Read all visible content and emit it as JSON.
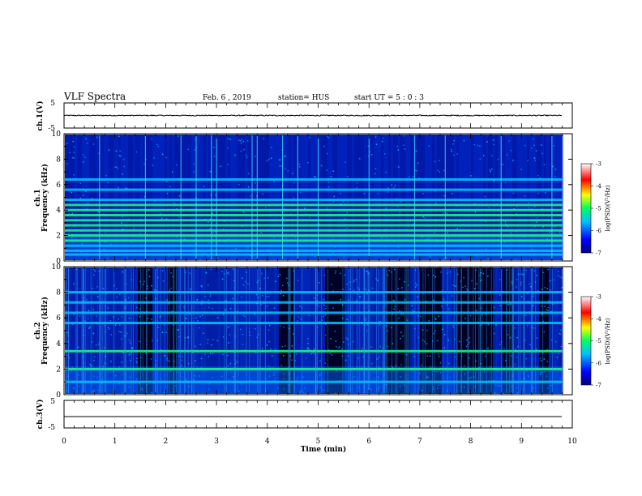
{
  "header": {
    "title": "VLF Spectra",
    "date": "Feb. 6 , 2019",
    "station": "station= HUS",
    "start": "start  UT  =   5 : 0  : 3"
  },
  "chart_data": [
    {
      "type": "line",
      "panel": "ch1-waveform",
      "ylabel": "ch.1(V)",
      "ylim": [
        -5,
        5
      ],
      "yticks": [
        "5",
        "-5"
      ],
      "xlim": [
        0,
        10
      ],
      "description_values": {
        "level": 0,
        "amplitude": 0.2
      }
    },
    {
      "type": "heatmap",
      "panel": "ch1-spectrogram",
      "ylabel": "ch.1\nFrequency (kHz)",
      "ylabel_lines": [
        "ch.1",
        "Frequency  (kHz)"
      ],
      "ylim": [
        0,
        10
      ],
      "yticks": [
        "0",
        "2",
        "4",
        "6",
        "8",
        "10"
      ],
      "xlim": [
        0,
        9.8
      ],
      "colorbar": {
        "label": "log(PSD)(V²/Hz)",
        "range": [
          -7,
          -3
        ],
        "ticks": [
          "-3",
          "-4",
          "-5",
          "-6",
          "-7"
        ]
      },
      "bright_bands_khz": [
        0.5,
        0.8,
        1.2,
        1.6,
        2.0,
        2.4,
        2.8,
        3.2,
        3.6,
        4.0,
        4.4,
        4.8,
        5.6,
        6.4
      ],
      "vertical_spikes_min": [
        0.7,
        1.6,
        2.3,
        2.6,
        2.9,
        3.0,
        3.7,
        3.8,
        4.3,
        4.6,
        5.0,
        6.0,
        6.9,
        7.5,
        8.6,
        9.6
      ]
    },
    {
      "type": "heatmap",
      "panel": "ch2-spectrogram",
      "ylabel_lines": [
        "ch.2",
        "Frequency  (kHz)"
      ],
      "ylim": [
        0,
        10
      ],
      "yticks": [
        "0",
        "2",
        "4",
        "6",
        "8",
        "10"
      ],
      "xlim": [
        0,
        9.8
      ],
      "colorbar": {
        "label": "log(PSD)(V²/Hz)",
        "range": [
          -7,
          -3
        ],
        "ticks": [
          "-3",
          "-4",
          "-5",
          "-6",
          "-7"
        ]
      },
      "bright_bands_khz": [
        1.0,
        2.0,
        3.4,
        5.6,
        6.4,
        7.2,
        8.0
      ],
      "dark_intervals_min": [
        [
          1.45,
          1.7
        ],
        [
          2.0,
          2.2
        ],
        [
          4.2,
          4.5
        ],
        [
          5.1,
          5.5
        ],
        [
          6.3,
          6.8
        ],
        [
          7.0,
          7.4
        ],
        [
          7.7,
          8.4
        ],
        [
          8.6,
          8.8
        ],
        [
          9.3,
          9.5
        ]
      ]
    },
    {
      "type": "line",
      "panel": "ch3-waveform",
      "ylabel": "ch.3(V)",
      "ylim": [
        -5,
        5
      ],
      "yticks": [
        "5",
        "-5"
      ],
      "xlim": [
        0,
        10
      ],
      "xlabel": "Time  (min)",
      "xticks": [
        "0",
        "1",
        "2",
        "3",
        "4",
        "5",
        "6",
        "7",
        "8",
        "9",
        "10"
      ],
      "description_values": {
        "level": -2
      }
    }
  ]
}
